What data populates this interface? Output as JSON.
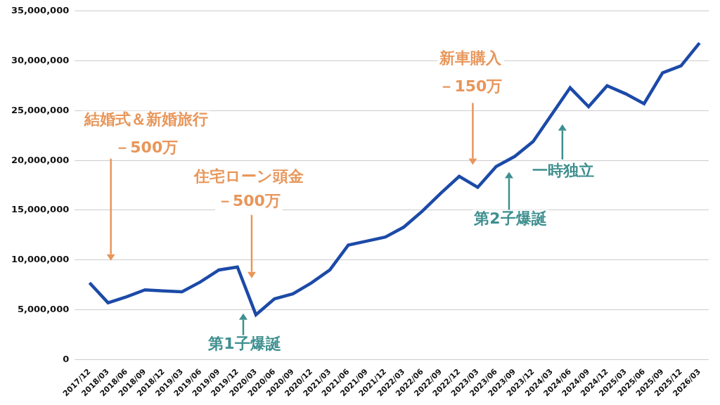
{
  "chart_data": {
    "type": "line",
    "categories": [
      "2017/12",
      "2018/03",
      "2018/06",
      "2018/09",
      "2018/12",
      "2019/03",
      "2019/06",
      "2019/09",
      "2019/12",
      "2020/03",
      "2020/06",
      "2020/09",
      "2020/12",
      "2021/03",
      "2021/06",
      "2021/09",
      "2021/12",
      "2022/03",
      "2022/06",
      "2022/09",
      "2022/12",
      "2023/03",
      "2023/06",
      "2023/09",
      "2023/12",
      "2024/03",
      "2024/06",
      "2024/09",
      "2024/12",
      "2025/03",
      "2025/06",
      "2025/09",
      "2025/12",
      "2026/03"
    ],
    "values": [
      7700000,
      5700000,
      6300000,
      7000000,
      6900000,
      6800000,
      7800000,
      9000000,
      9300000,
      4500000,
      6100000,
      6600000,
      7700000,
      9000000,
      11500000,
      11900000,
      12300000,
      13300000,
      14900000,
      16700000,
      18400000,
      17300000,
      19400000,
      20400000,
      21900000,
      24600000,
      27300000,
      25400000,
      27500000,
      26700000,
      25700000,
      28800000,
      29500000,
      31800000
    ],
    "color": "#1c4aa8",
    "ylim": [
      0,
      35000000
    ],
    "yticks": [
      {
        "value": 0,
        "label": "0"
      },
      {
        "value": 5000000,
        "label": "5,000,000"
      },
      {
        "value": 10000000,
        "label": "10,000,000"
      },
      {
        "value": 15000000,
        "label": "15,000,000"
      },
      {
        "value": 20000000,
        "label": "20,000,000"
      },
      {
        "value": 25000000,
        "label": "25,000,000"
      },
      {
        "value": 30000000,
        "label": "30,000,000"
      },
      {
        "value": 35000000,
        "label": "35,000,000"
      }
    ],
    "grid": true,
    "annotations": [
      {
        "text": [
          "結婚式＆新婚旅行",
          "－500万"
        ],
        "x": "2018/03",
        "color": "#e8965a"
      },
      {
        "text": [
          "住宅ローン頭金",
          "－500万"
        ],
        "x": "2020/03",
        "color": "#e8965a"
      },
      {
        "text": [
          "新車購入",
          "－150万"
        ],
        "x": "2023/03",
        "color": "#e8965a"
      },
      {
        "text": [
          "第1子爆誕"
        ],
        "x": "2020/03",
        "color": "#3f8f8f"
      },
      {
        "text": [
          "第2子爆誕"
        ],
        "x": "2023/09",
        "color": "#3f8f8f"
      },
      {
        "text": [
          "一時独立"
        ],
        "x": "2024/06",
        "color": "#3f8f8f"
      }
    ]
  }
}
